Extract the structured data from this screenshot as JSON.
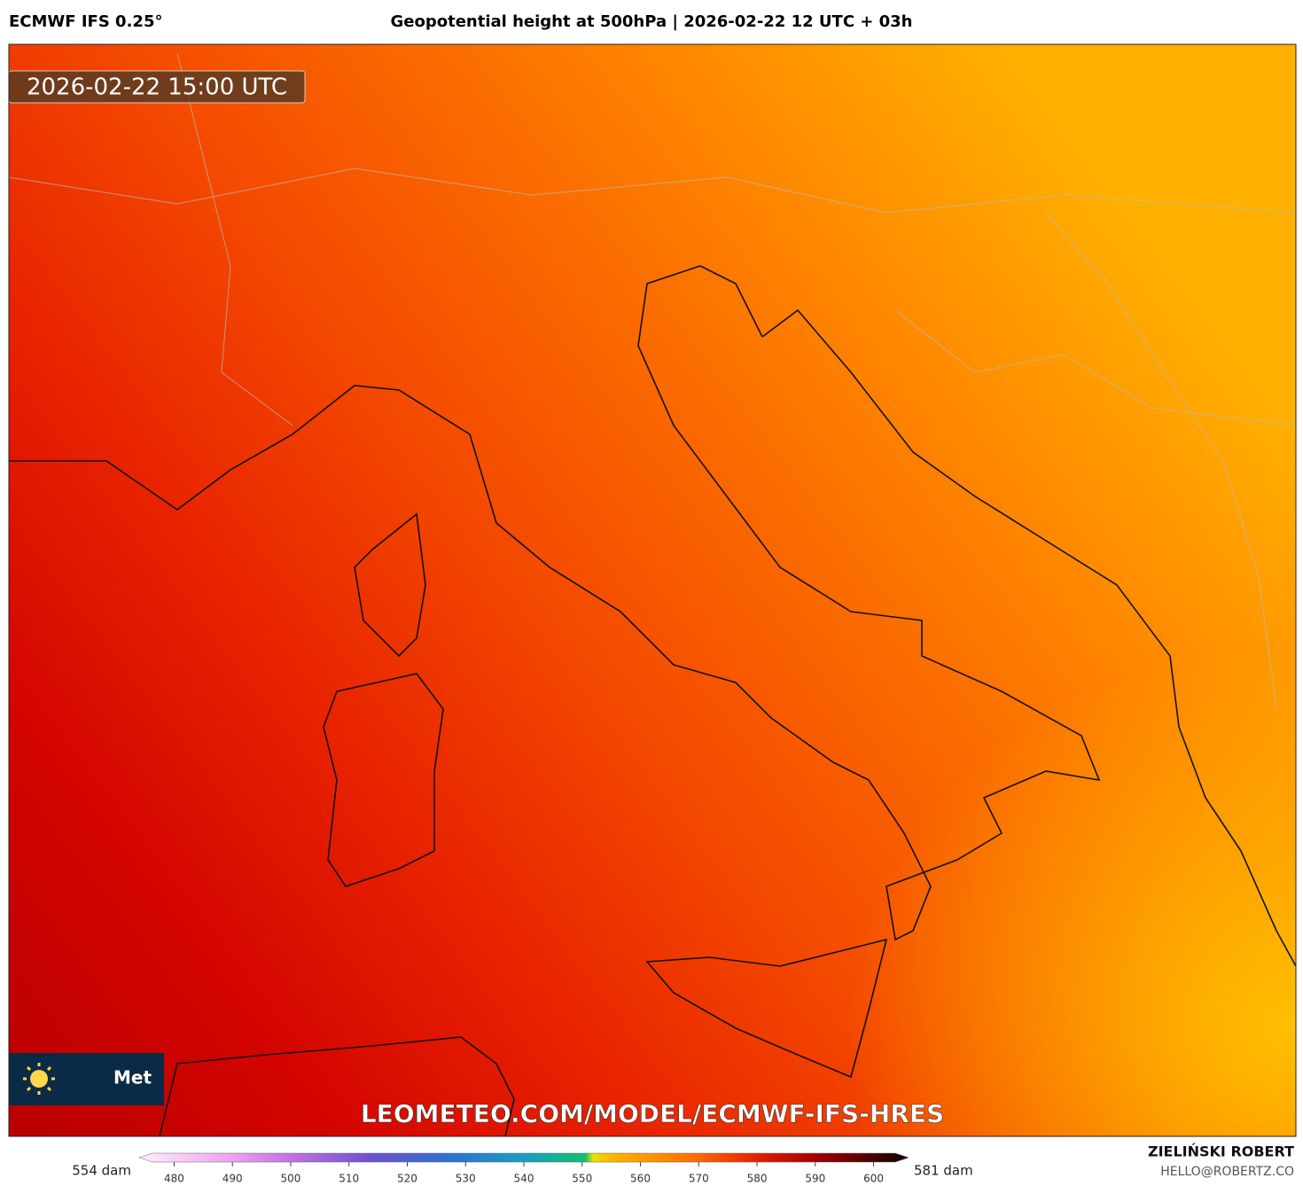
{
  "header": {
    "model": "ECMWF IFS 0.25°",
    "title": "Geopotential height at 500hPa | 2026-02-22 12 UTC + 03h"
  },
  "map": {
    "valid_time": "2026-02-22 15:00 UTC",
    "logo_text": "Met",
    "watermark": "LEOMETEO.COM/MODEL/ECMWF-IFS-HRES"
  },
  "colorbar": {
    "min_label": "554 dam",
    "max_label": "581 dam",
    "lim": [
      474,
      606
    ],
    "ticks": [
      480,
      490,
      500,
      510,
      520,
      530,
      540,
      550,
      560,
      570,
      580,
      590,
      600
    ]
  },
  "footer": {
    "author": "ZIELIŃSKI ROBERT",
    "email": "HELLO@ROBERTZ.CO"
  }
}
